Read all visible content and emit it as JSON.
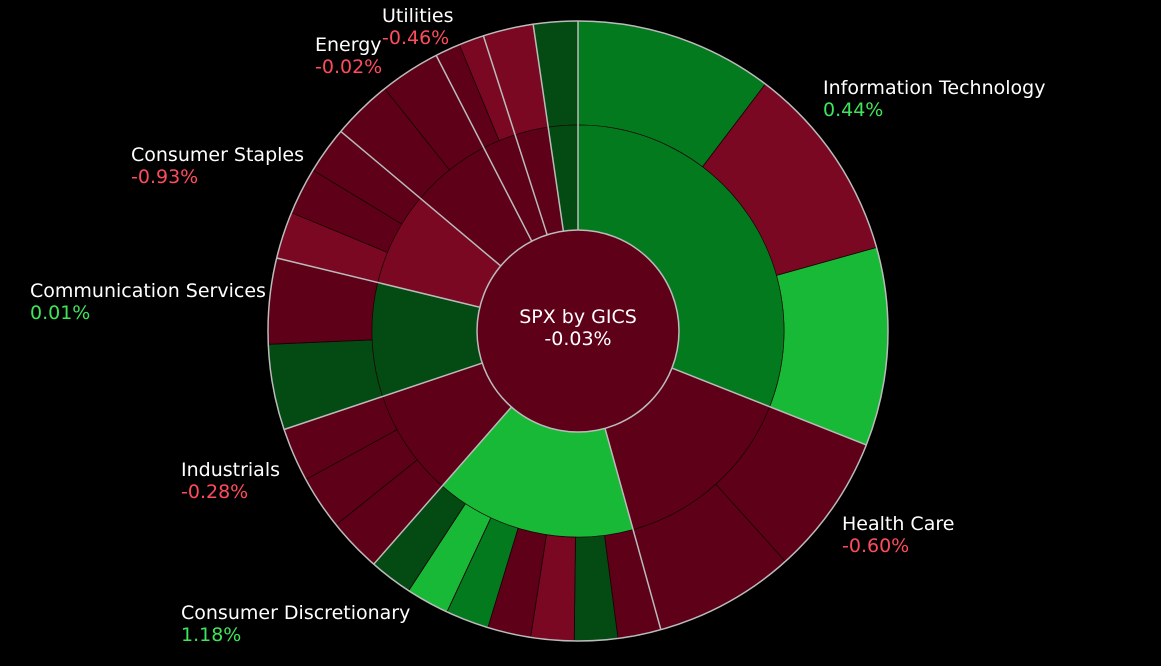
{
  "chart_data": {
    "type": "sunburst",
    "title": "SPX by GICS",
    "total_change": "-0.03%",
    "colors": {
      "strong_green": "#18b936",
      "green": "#047a1f",
      "dark_green": "#034b12",
      "red": "#7a0822",
      "dark_red": "#5e0018",
      "background": "#000000",
      "divider": "#bbbbbb"
    },
    "sectors": [
      {
        "name": "Information Technology",
        "change": "0.44%",
        "value": 0.44,
        "weight": 29.5
      },
      {
        "name": "Health Care",
        "change": "-0.60%",
        "value": -0.6,
        "weight": 14.0
      },
      {
        "name": "Consumer Discretionary",
        "change": "1.18%",
        "value": 1.18,
        "weight": 15.0
      },
      {
        "name": "Industrials",
        "change": "-0.28%",
        "value": -0.28,
        "weight": 8.0
      },
      {
        "name": "Communication Services",
        "change": "0.01%",
        "value": 0.01,
        "weight": 8.5
      },
      {
        "name": "Consumer Staples",
        "change": "-0.93%",
        "value": -0.93,
        "weight": 7.0
      },
      {
        "name": "Energy",
        "change": "-0.02%",
        "value": -0.02,
        "weight": 6.0
      },
      {
        "name": "Utilities",
        "change": "-0.46%",
        "value": -0.46,
        "weight": 2.5
      },
      {
        "name": "",
        "change": "",
        "value": -0.7,
        "weight": 2.5
      },
      {
        "name": "",
        "change": "",
        "value": 0.2,
        "weight": 2.2
      }
    ]
  }
}
